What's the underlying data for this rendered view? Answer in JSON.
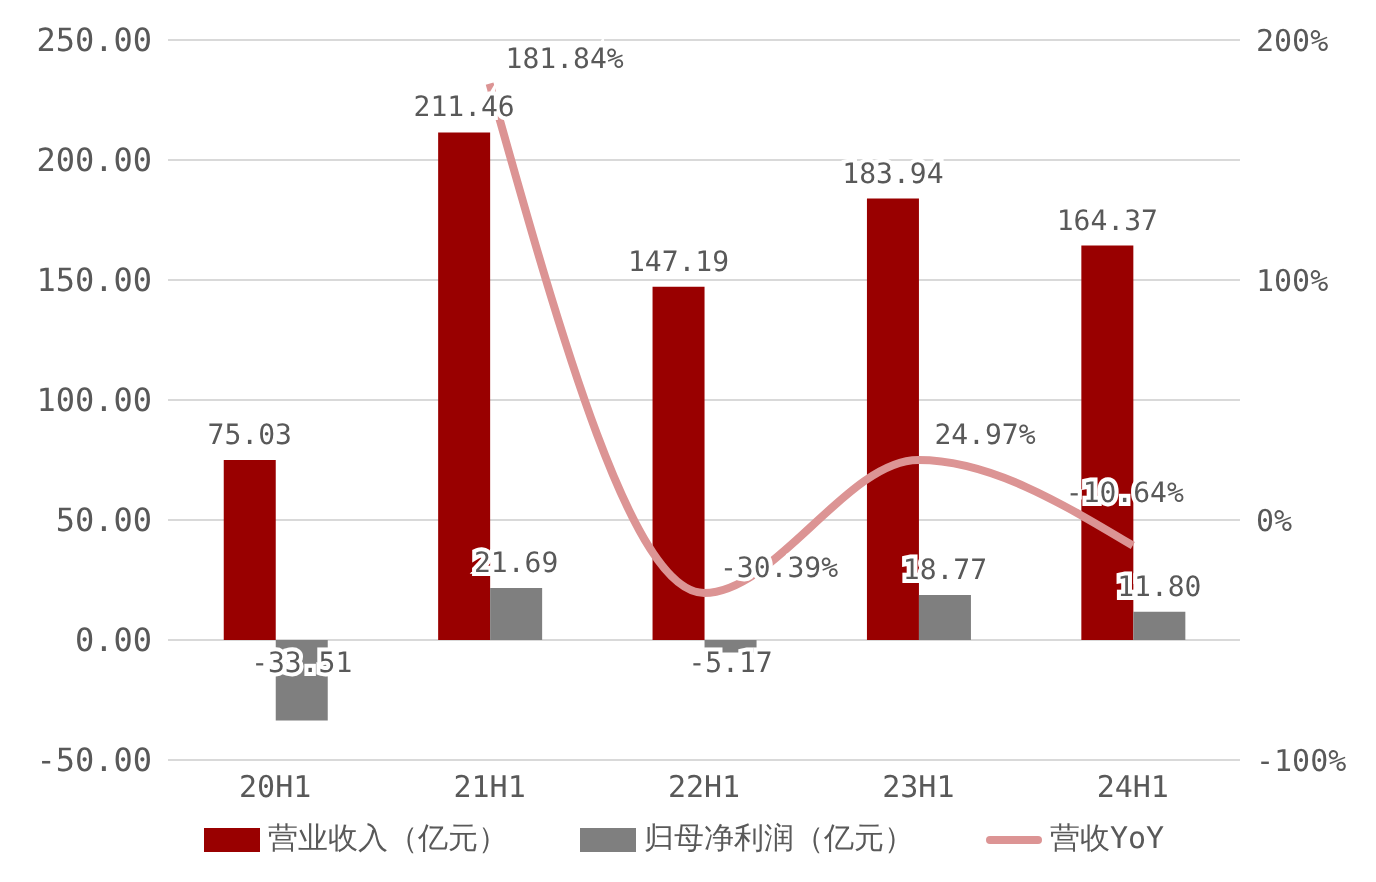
{
  "chart_data": {
    "type": "bar",
    "categories": [
      "20H1",
      "21H1",
      "22H1",
      "23H1",
      "24H1"
    ],
    "series": [
      {
        "name": "营业收入（亿元）",
        "color": "#990000",
        "values": [
          75.03,
          211.46,
          147.19,
          183.94,
          164.37
        ],
        "value_labels": [
          "75.03",
          "211.46",
          "147.19",
          "183.94",
          "164.37"
        ]
      },
      {
        "name": "归母净利润（亿元）",
        "color": "#7f7f7f",
        "values": [
          -33.51,
          21.69,
          -5.17,
          18.77,
          11.8
        ],
        "value_labels": [
          "-33.51",
          "21.69",
          "-5.17",
          "18.77",
          "11.80"
        ]
      },
      {
        "name": "营收YoY",
        "type": "line",
        "axis": "y2",
        "color": "#dc9494",
        "values": [
          null,
          181.84,
          -30.39,
          24.97,
          -10.64
        ],
        "value_labels": [
          null,
          "181.84%",
          "-30.39%",
          "24.97%",
          "-10.64%"
        ]
      }
    ],
    "ylim": [
      -50,
      250
    ],
    "yticks": [
      {
        "value": -50,
        "label": "-50.00"
      },
      {
        "value": 0,
        "label": "0.00"
      },
      {
        "value": 50,
        "label": "50.00"
      },
      {
        "value": 100,
        "label": "100.00"
      },
      {
        "value": 150,
        "label": "150.00"
      },
      {
        "value": 200,
        "label": "200.00"
      },
      {
        "value": 250,
        "label": "250.00"
      }
    ],
    "y2lim": [
      -100,
      200
    ],
    "y2ticks": [
      {
        "value": -100,
        "label": "-100%"
      },
      {
        "value": 0,
        "label": "0%"
      },
      {
        "value": 100,
        "label": "100%"
      },
      {
        "value": 200,
        "label": "200%"
      }
    ],
    "grid": "y",
    "legend": "bottom",
    "marker": "none",
    "line_style": "solid"
  }
}
